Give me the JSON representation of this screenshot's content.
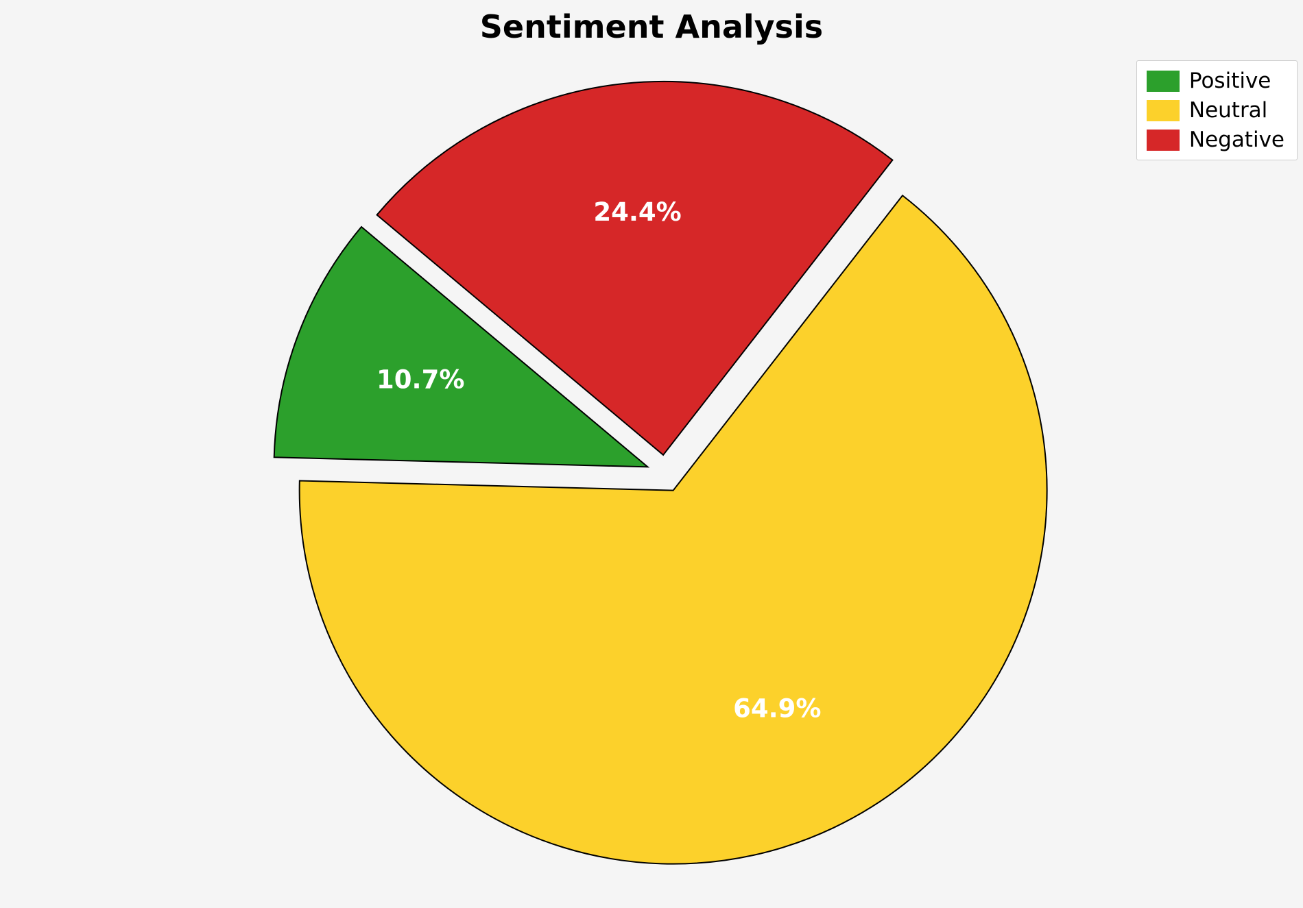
{
  "figure": {
    "background_color": "#f5f5f5"
  },
  "chart_data": {
    "type": "pie",
    "title": "Sentiment Analysis",
    "slices": [
      {
        "label": "Positive",
        "value": 10.7,
        "pct_label": "10.7%",
        "color": "#2CA02C"
      },
      {
        "label": "Neutral",
        "value": 64.9,
        "pct_label": "64.9%",
        "color": "#FCD12B"
      },
      {
        "label": "Negative",
        "value": 24.4,
        "pct_label": "24.4%",
        "color": "#D62728"
      }
    ],
    "start_angle": 140,
    "counterclockwise": true,
    "explode": 0.05,
    "edge_color": "#000000",
    "pct_label_color": "#ffffff",
    "legend": {
      "position": "upper right",
      "entries": [
        "Positive",
        "Neutral",
        "Negative"
      ]
    }
  }
}
